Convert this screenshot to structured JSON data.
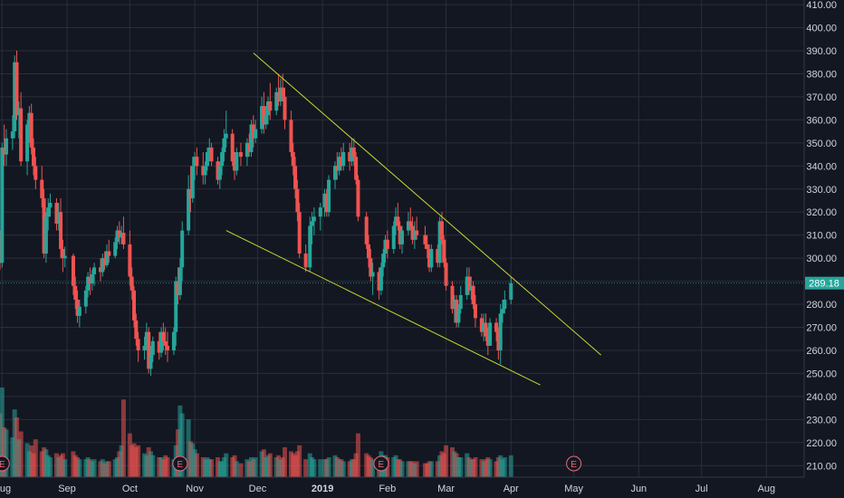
{
  "chart_data": {
    "type": "candlestick",
    "y_axis": {
      "ticks": [
        210,
        220,
        230,
        240,
        250,
        260,
        270,
        280,
        290,
        300,
        310,
        320,
        330,
        340,
        350,
        360,
        370,
        380,
        390,
        400,
        410
      ],
      "tick_labels": [
        "210.00",
        "220.00",
        "230.00",
        "240.00",
        "250.00",
        "260.00",
        "270.00",
        "280.00",
        "290.00",
        "300.00",
        "310.00",
        "320.00",
        "330.00",
        "340.00",
        "350.00",
        "360.00",
        "370.00",
        "380.00",
        "390.00",
        "400.00",
        "410.00"
      ],
      "range": [
        205,
        412
      ]
    },
    "x_axis": {
      "labels": [
        "Aug",
        "Sep",
        "Oct",
        "Nov",
        "Dec",
        "2019",
        "Feb",
        "Mar",
        "Apr",
        "May",
        "Jun",
        "Jul",
        "Aug"
      ],
      "bold_labels": [
        "2019"
      ],
      "dates": [
        "2018-08-01",
        "2018-09-01",
        "2018-10-01",
        "2018-11-01",
        "2018-12-01",
        "2019-01-01",
        "2019-02-01",
        "2019-03-01",
        "2019-04-01",
        "2019-05-01",
        "2019-06-01",
        "2019-07-01",
        "2019-08-01"
      ]
    },
    "last_price": "289.18",
    "colors": {
      "background": "#131722",
      "grid": "#2a2e39",
      "up": "#26a69a",
      "down": "#ef5350",
      "trendline": "#c8d82e",
      "price_label": "#26a69a",
      "earnings": "#e86a7a"
    },
    "earnings_markers": {
      "label": "E",
      "dates": [
        "2018-08-01",
        "2018-10-25",
        "2019-01-29",
        "2019-05-01"
      ]
    },
    "trendlines": [
      {
        "name": "upper",
        "points": [
          [
            "2018-11-29",
            389
          ],
          [
            "2019-05-14",
            258
          ]
        ]
      },
      {
        "name": "lower",
        "points": [
          [
            "2018-11-16",
            312
          ],
          [
            "2019-04-15",
            245
          ]
        ]
      }
    ],
    "candles": [
      [
        "2018-07-31",
        310,
        312,
        295,
        298,
        3.2
      ],
      [
        "2018-08-01",
        298,
        350,
        296,
        348,
        4.5
      ],
      [
        "2018-08-02",
        348,
        358,
        340,
        345,
        2.5
      ],
      [
        "2018-08-03",
        345,
        356,
        340,
        352,
        2.4
      ],
      [
        "2018-08-06",
        352,
        362,
        347,
        355,
        2.0
      ],
      [
        "2018-08-07",
        355,
        388,
        352,
        385,
        3.4
      ],
      [
        "2018-08-08",
        385,
        390,
        360,
        362,
        3.0
      ],
      [
        "2018-08-09",
        362,
        368,
        352,
        365,
        1.9
      ],
      [
        "2018-08-10",
        365,
        372,
        340,
        342,
        2.3
      ],
      [
        "2018-08-13",
        342,
        360,
        336,
        358,
        1.7
      ],
      [
        "2018-08-14",
        358,
        366,
        350,
        363,
        1.3
      ],
      [
        "2018-08-15",
        363,
        367,
        345,
        348,
        1.6
      ],
      [
        "2018-08-16",
        348,
        352,
        336,
        340,
        1.2
      ],
      [
        "2018-08-17",
        340,
        344,
        330,
        334,
        1.9
      ],
      [
        "2018-08-20",
        334,
        340,
        322,
        326,
        1.3
      ],
      [
        "2018-08-21",
        326,
        330,
        300,
        302,
        1.5
      ],
      [
        "2018-08-22",
        302,
        320,
        298,
        318,
        1.4
      ],
      [
        "2018-08-23",
        318,
        326,
        312,
        322,
        1.1
      ],
      [
        "2018-08-24",
        322,
        328,
        318,
        324,
        1.0
      ],
      [
        "2018-08-27",
        324,
        326,
        312,
        315,
        1.2
      ],
      [
        "2018-08-28",
        315,
        324,
        312,
        320,
        1.0
      ],
      [
        "2018-08-29",
        320,
        326,
        300,
        304,
        1.1
      ],
      [
        "2018-08-30",
        304,
        308,
        294,
        300,
        1.2
      ],
      [
        "2018-08-31",
        300,
        305,
        296,
        301,
        0.9
      ],
      [
        "2018-09-04",
        301,
        302,
        284,
        288,
        1.3
      ],
      [
        "2018-09-05",
        288,
        292,
        278,
        282,
        1.1
      ],
      [
        "2018-09-06",
        282,
        286,
        272,
        275,
        1.0
      ],
      [
        "2018-09-07",
        275,
        282,
        270,
        279,
        0.9
      ],
      [
        "2018-09-10",
        279,
        288,
        276,
        286,
        0.9
      ],
      [
        "2018-09-11",
        286,
        294,
        283,
        292,
        1.0
      ],
      [
        "2018-09-12",
        292,
        296,
        284,
        289,
        0.9
      ],
      [
        "2018-09-13",
        289,
        295,
        286,
        293,
        0.8
      ],
      [
        "2018-09-14",
        293,
        298,
        288,
        296,
        0.9
      ],
      [
        "2018-09-17",
        296,
        300,
        290,
        294,
        0.8
      ],
      [
        "2018-09-18",
        294,
        302,
        292,
        300,
        0.9
      ],
      [
        "2018-09-19",
        300,
        303,
        295,
        297,
        0.7
      ],
      [
        "2018-09-20",
        297,
        306,
        296,
        303,
        0.8
      ],
      [
        "2018-09-21",
        303,
        308,
        298,
        301,
        0.8
      ],
      [
        "2018-09-24",
        301,
        309,
        300,
        307,
        0.9
      ],
      [
        "2018-09-25",
        307,
        314,
        304,
        312,
        1.0
      ],
      [
        "2018-09-26",
        312,
        316,
        306,
        309,
        1.3
      ],
      [
        "2018-09-27",
        309,
        314,
        306,
        311,
        1.6
      ],
      [
        "2018-09-28",
        311,
        318,
        304,
        306,
        3.9
      ],
      [
        "2018-10-01",
        306,
        312,
        288,
        292,
        2.2
      ],
      [
        "2018-10-02",
        292,
        296,
        282,
        286,
        1.6
      ],
      [
        "2018-10-03",
        286,
        288,
        270,
        273,
        1.7
      ],
      [
        "2018-10-04",
        273,
        276,
        262,
        265,
        1.5
      ],
      [
        "2018-10-05",
        265,
        268,
        255,
        260,
        1.6
      ],
      [
        "2018-10-08",
        260,
        266,
        256,
        262,
        1.2
      ],
      [
        "2018-10-09",
        262,
        272,
        260,
        268,
        1.1
      ],
      [
        "2018-10-10",
        268,
        270,
        250,
        252,
        1.5
      ],
      [
        "2018-10-11",
        252,
        262,
        249,
        258,
        1.3
      ],
      [
        "2018-10-12",
        258,
        266,
        255,
        264,
        1.1
      ],
      [
        "2018-10-15",
        264,
        268,
        256,
        259,
        1.0
      ],
      [
        "2018-10-16",
        259,
        270,
        257,
        268,
        1.0
      ],
      [
        "2018-10-17",
        268,
        272,
        260,
        264,
        0.9
      ],
      [
        "2018-10-18",
        264,
        270,
        258,
        262,
        1.1
      ],
      [
        "2018-10-19",
        262,
        268,
        255,
        260,
        1.0
      ],
      [
        "2018-10-22",
        260,
        270,
        258,
        268,
        0.9
      ],
      [
        "2018-10-23",
        268,
        292,
        262,
        290,
        1.6
      ],
      [
        "2018-10-24",
        290,
        296,
        280,
        284,
        2.4
      ],
      [
        "2018-10-25",
        284,
        300,
        282,
        296,
        3.6
      ],
      [
        "2018-10-26",
        296,
        316,
        290,
        312,
        3.2
      ],
      [
        "2018-10-29",
        312,
        336,
        310,
        330,
        2.9
      ],
      [
        "2018-10-30",
        330,
        340,
        320,
        326,
        1.8
      ],
      [
        "2018-10-31",
        326,
        344,
        324,
        340,
        1.7
      ],
      [
        "2018-11-01",
        340,
        346,
        334,
        344,
        1.4
      ],
      [
        "2018-11-02",
        344,
        348,
        336,
        340,
        1.2
      ],
      [
        "2018-11-05",
        340,
        346,
        332,
        336,
        1.0
      ],
      [
        "2018-11-06",
        336,
        342,
        332,
        340,
        0.9
      ],
      [
        "2018-11-07",
        340,
        348,
        338,
        346,
        1.0
      ],
      [
        "2018-11-08",
        346,
        352,
        342,
        348,
        0.9
      ],
      [
        "2018-11-09",
        348,
        350,
        340,
        342,
        0.9
      ],
      [
        "2018-11-12",
        342,
        344,
        332,
        334,
        1.0
      ],
      [
        "2018-11-13",
        334,
        342,
        330,
        340,
        0.8
      ],
      [
        "2018-11-14",
        340,
        348,
        336,
        346,
        0.8
      ],
      [
        "2018-11-15",
        346,
        356,
        342,
        352,
        1.0
      ],
      [
        "2018-11-16",
        352,
        364,
        348,
        354,
        1.2
      ],
      [
        "2018-11-19",
        354,
        356,
        340,
        342,
        1.0
      ],
      [
        "2018-11-20",
        342,
        346,
        334,
        338,
        1.1
      ],
      [
        "2018-11-21",
        338,
        348,
        336,
        346,
        0.8
      ],
      [
        "2018-11-23",
        346,
        350,
        340,
        344,
        0.7
      ],
      [
        "2018-11-26",
        344,
        352,
        340,
        350,
        0.9
      ],
      [
        "2018-11-27",
        350,
        354,
        344,
        346,
        0.8
      ],
      [
        "2018-11-28",
        346,
        360,
        344,
        358,
        1.0
      ],
      [
        "2018-11-29",
        358,
        362,
        348,
        352,
        0.9
      ],
      [
        "2018-11-30",
        352,
        360,
        350,
        356,
        1.0
      ],
      [
        "2018-12-03",
        356,
        370,
        354,
        366,
        1.3
      ],
      [
        "2018-12-04",
        366,
        372,
        354,
        358,
        1.4
      ],
      [
        "2018-12-05",
        358,
        366,
        356,
        362,
        1.0
      ],
      [
        "2018-12-06",
        362,
        370,
        358,
        368,
        1.1
      ],
      [
        "2018-12-07",
        368,
        376,
        360,
        364,
        1.2
      ],
      [
        "2018-12-10",
        364,
        374,
        362,
        372,
        1.0
      ],
      [
        "2018-12-11",
        372,
        380,
        366,
        368,
        1.1
      ],
      [
        "2018-12-12",
        368,
        378,
        366,
        374,
        0.9
      ],
      [
        "2018-12-13",
        374,
        380,
        368,
        370,
        1.0
      ],
      [
        "2018-12-14",
        370,
        374,
        356,
        360,
        1.5
      ],
      [
        "2018-12-17",
        360,
        364,
        344,
        346,
        1.3
      ],
      [
        "2018-12-18",
        346,
        350,
        336,
        340,
        1.2
      ],
      [
        "2018-12-19",
        340,
        344,
        326,
        330,
        1.1
      ],
      [
        "2018-12-20",
        330,
        334,
        316,
        320,
        1.3
      ],
      [
        "2018-12-21",
        320,
        324,
        300,
        302,
        1.6
      ],
      [
        "2018-12-24",
        302,
        306,
        294,
        296,
        0.9
      ],
      [
        "2018-12-26",
        296,
        318,
        294,
        314,
        1.2
      ],
      [
        "2018-12-27",
        314,
        320,
        306,
        316,
        1.0
      ],
      [
        "2018-12-28",
        316,
        322,
        310,
        318,
        0.9
      ],
      [
        "2018-12-31",
        318,
        324,
        312,
        322,
        0.9
      ],
      [
        "2019-01-02",
        322,
        330,
        318,
        328,
        0.9
      ],
      [
        "2019-01-03",
        328,
        330,
        318,
        320,
        0.9
      ],
      [
        "2019-01-04",
        320,
        336,
        318,
        334,
        1.0
      ],
      [
        "2019-01-07",
        334,
        342,
        330,
        340,
        1.1
      ],
      [
        "2019-01-08",
        340,
        346,
        334,
        338,
        1.0
      ],
      [
        "2019-01-09",
        338,
        346,
        336,
        344,
        0.9
      ],
      [
        "2019-01-10",
        344,
        348,
        338,
        340,
        0.9
      ],
      [
        "2019-01-11",
        340,
        350,
        338,
        346,
        0.8
      ],
      [
        "2019-01-14",
        346,
        350,
        338,
        342,
        0.8
      ],
      [
        "2019-01-15",
        342,
        352,
        340,
        348,
        0.9
      ],
      [
        "2019-01-16",
        348,
        352,
        340,
        344,
        0.9
      ],
      [
        "2019-01-17",
        344,
        346,
        332,
        334,
        1.2
      ],
      [
        "2019-01-18",
        334,
        336,
        316,
        318,
        2.2
      ],
      [
        "2019-01-22",
        318,
        320,
        304,
        306,
        1.2
      ],
      [
        "2019-01-23",
        306,
        310,
        296,
        300,
        1.1
      ],
      [
        "2019-01-24",
        300,
        304,
        290,
        292,
        1.0
      ],
      [
        "2019-01-25",
        292,
        298,
        284,
        294,
        0.9
      ],
      [
        "2019-01-28",
        294,
        296,
        282,
        286,
        0.9
      ],
      [
        "2019-01-29",
        286,
        298,
        284,
        296,
        1.3
      ],
      [
        "2019-01-30",
        296,
        304,
        292,
        302,
        1.1
      ],
      [
        "2019-01-31",
        302,
        310,
        298,
        308,
        1.1
      ],
      [
        "2019-02-01",
        308,
        312,
        300,
        304,
        1.0
      ],
      [
        "2019-02-04",
        304,
        316,
        302,
        314,
        1.0
      ],
      [
        "2019-02-05",
        314,
        322,
        310,
        318,
        1.1
      ],
      [
        "2019-02-06",
        318,
        324,
        312,
        314,
        0.9
      ],
      [
        "2019-02-07",
        314,
        316,
        304,
        306,
        0.9
      ],
      [
        "2019-02-08",
        306,
        314,
        302,
        312,
        0.8
      ],
      [
        "2019-02-11",
        312,
        320,
        310,
        316,
        0.8
      ],
      [
        "2019-02-12",
        316,
        322,
        312,
        314,
        0.8
      ],
      [
        "2019-02-13",
        314,
        318,
        306,
        308,
        0.8
      ],
      [
        "2019-02-14",
        308,
        316,
        304,
        312,
        0.7
      ],
      [
        "2019-02-15",
        312,
        318,
        308,
        310,
        0.8
      ],
      [
        "2019-02-19",
        310,
        314,
        304,
        306,
        0.7
      ],
      [
        "2019-02-20",
        306,
        310,
        300,
        304,
        0.7
      ],
      [
        "2019-02-21",
        304,
        306,
        294,
        296,
        0.8
      ],
      [
        "2019-02-22",
        296,
        306,
        294,
        304,
        0.8
      ],
      [
        "2019-02-25",
        304,
        306,
        296,
        298,
        0.8
      ],
      [
        "2019-02-26",
        298,
        318,
        296,
        316,
        1.1
      ],
      [
        "2019-02-27",
        316,
        320,
        306,
        308,
        1.3
      ],
      [
        "2019-02-28",
        308,
        310,
        296,
        298,
        1.2
      ],
      [
        "2019-03-01",
        298,
        300,
        286,
        288,
        1.6
      ],
      [
        "2019-03-04",
        288,
        290,
        276,
        278,
        1.5
      ],
      [
        "2019-03-05",
        278,
        284,
        272,
        282,
        1.3
      ],
      [
        "2019-03-06",
        282,
        284,
        270,
        272,
        1.2
      ],
      [
        "2019-03-07",
        272,
        280,
        270,
        278,
        1.0
      ],
      [
        "2019-03-08",
        278,
        288,
        276,
        284,
        1.0
      ],
      [
        "2019-03-11",
        284,
        296,
        282,
        292,
        1.2
      ],
      [
        "2019-03-12",
        292,
        296,
        284,
        286,
        1.0
      ],
      [
        "2019-03-13",
        286,
        292,
        282,
        288,
        0.9
      ],
      [
        "2019-03-14",
        288,
        290,
        278,
        280,
        0.9
      ],
      [
        "2019-03-15",
        280,
        284,
        270,
        274,
        1.0
      ],
      [
        "2019-03-18",
        274,
        276,
        266,
        268,
        0.9
      ],
      [
        "2019-03-19",
        268,
        276,
        264,
        272,
        0.8
      ],
      [
        "2019-03-20",
        272,
        276,
        264,
        266,
        0.9
      ],
      [
        "2019-03-21",
        266,
        270,
        258,
        262,
        1.0
      ],
      [
        "2019-03-22",
        262,
        274,
        262,
        272,
        0.9
      ],
      [
        "2019-03-25",
        272,
        274,
        264,
        268,
        0.8
      ],
      [
        "2019-03-26",
        268,
        270,
        256,
        260,
        1.0
      ],
      [
        "2019-03-27",
        260,
        280,
        254,
        276,
        1.1
      ],
      [
        "2019-03-28",
        276,
        282,
        272,
        278,
        0.9
      ],
      [
        "2019-03-29",
        278,
        286,
        276,
        282,
        1.0
      ],
      [
        "2019-04-01",
        282,
        292,
        280,
        289.18,
        1.1
      ]
    ]
  }
}
